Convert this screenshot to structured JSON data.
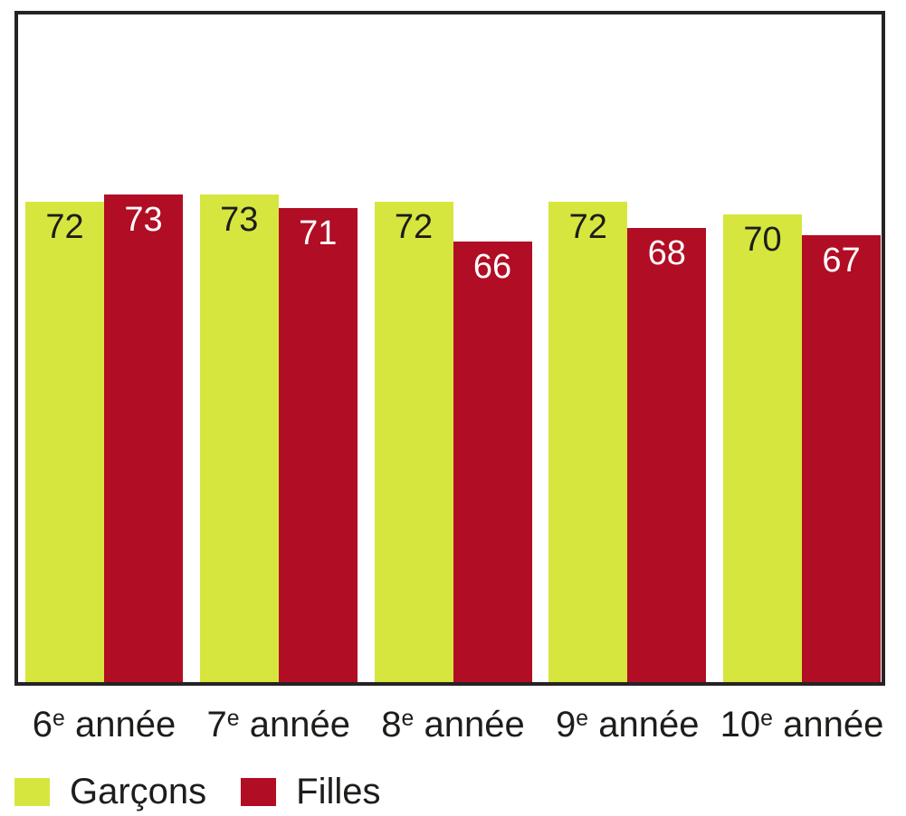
{
  "chart_data": {
    "type": "bar",
    "title": "",
    "xlabel": "",
    "ylabel": "",
    "ylim": [
      0,
      100
    ],
    "grid": false,
    "value_labels": "inside-top",
    "legend_position": "bottom-left",
    "categories": [
      {
        "label": "6e année",
        "num": "6",
        "sup": "e",
        "rest": " année"
      },
      {
        "label": "7e année",
        "num": "7",
        "sup": "e",
        "rest": " année"
      },
      {
        "label": "8e année",
        "num": "8",
        "sup": "e",
        "rest": " année"
      },
      {
        "label": "9e année",
        "num": "9",
        "sup": "e",
        "rest": " année"
      },
      {
        "label": "10e année",
        "num": "10",
        "sup": "e",
        "rest": " année"
      }
    ],
    "series": [
      {
        "name": "Garçons",
        "key": "garcons",
        "color": "#d6e63e",
        "value_label_color": "#1d1d1b",
        "values": [
          72,
          73,
          72,
          72,
          70
        ]
      },
      {
        "name": "Filles",
        "key": "filles",
        "color": "#b10d24",
        "value_label_color": "#ffffff",
        "values": [
          73,
          71,
          66,
          68,
          67
        ]
      }
    ],
    "frame_border_color": "#262324",
    "background_color": "#ffffff",
    "text_color": "#1d1d1b"
  }
}
